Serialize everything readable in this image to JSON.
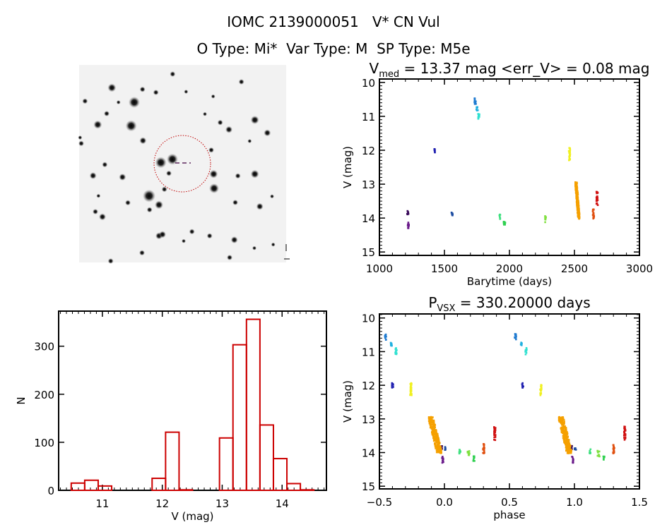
{
  "figure": {
    "title": "IOMC 2139000051   V* CN Vul",
    "subtitle": "O Type: Mi*  Var Type: M  SP Type: M5e"
  },
  "sky_image": {
    "background": "#f2f2f2",
    "circle_color": "#c00000",
    "marker_color": "#400040"
  },
  "chart_data": [
    {
      "id": "light-curve",
      "type": "scatter",
      "title_main": "V",
      "title_sub": "med",
      "title_rest": " = 13.37 mag <err_V> = 0.08 mag",
      "xlabel": "Barytime (days)",
      "ylabel": "V (mag)",
      "xlim": [
        1000,
        3000
      ],
      "ylim": [
        9.9,
        15.1
      ],
      "y_inverted": true,
      "xticks": [
        "1000",
        "1500",
        "2000",
        "2500",
        "3000"
      ],
      "yticks": [
        "10",
        "11",
        "12",
        "13",
        "14",
        "15"
      ],
      "groups": [
        {
          "t": [
            1218,
            1218
          ],
          "v": [
            13.79,
            13.91
          ],
          "color": "#3a0a5a"
        },
        {
          "t": [
            1221,
            1221
          ],
          "v": [
            14.12,
            14.31
          ],
          "color": "#6a1a8a"
        },
        {
          "t": [
            1424,
            1424
          ],
          "v": [
            11.93,
            12.07
          ],
          "color": "#2020b0"
        },
        {
          "t": [
            1558,
            1558
          ],
          "v": [
            13.83,
            13.93
          ],
          "color": "#1a4aa0"
        },
        {
          "t": [
            1736,
            1736
          ],
          "v": [
            10.47,
            10.65
          ],
          "color": "#1e7ad0"
        },
        {
          "t": [
            1751,
            1751
          ],
          "v": [
            10.72,
            10.83
          ],
          "color": "#20b0e0"
        },
        {
          "t": [
            1763,
            1763
          ],
          "v": [
            10.89,
            11.08
          ],
          "color": "#30e0d0"
        },
        {
          "t": [
            1925,
            1925
          ],
          "v": [
            13.89,
            14.03
          ],
          "color": "#40e080"
        },
        {
          "t": [
            1961,
            1961
          ],
          "v": [
            14.1,
            14.25
          ],
          "color": "#30d050"
        },
        {
          "t": [
            2274,
            2280
          ],
          "v": [
            13.94,
            14.12
          ],
          "color": "#80e040"
        },
        {
          "t": [
            2461,
            2461
          ],
          "v": [
            11.93,
            12.31
          ],
          "color": "#f0f020"
        },
        {
          "t": [
            2507,
            2538
          ],
          "v": [
            12.94,
            14.02
          ],
          "color": "#f5a000"
        },
        {
          "t": [
            2646,
            2646
          ],
          "v": [
            13.74,
            14.04
          ],
          "color": "#e05010"
        },
        {
          "t": [
            2674,
            2674
          ],
          "v": [
            13.22,
            13.63
          ],
          "color": "#d01010"
        }
      ]
    },
    {
      "id": "histogram",
      "type": "bar",
      "xlabel": "V (mag)",
      "ylabel": "N",
      "xlim": [
        10.27,
        14.74
      ],
      "ylim": [
        0,
        373
      ],
      "xticks": [
        "11",
        "12",
        "13",
        "14"
      ],
      "yticks": [
        "0",
        "100",
        "200",
        "300"
      ],
      "bin_start": 10.48,
      "bin_width": 0.225,
      "counts": [
        15,
        21,
        9,
        0,
        0,
        0,
        25,
        121,
        1,
        0,
        0,
        109,
        303,
        356,
        136,
        66,
        14,
        1
      ],
      "color": "#cc0000"
    },
    {
      "id": "phased-light-curve",
      "type": "scatter",
      "title_main": "P",
      "title_sub": "VSX",
      "title_rest": " = 330.20000 days",
      "period_days": 330.2,
      "xlabel": "phase",
      "ylabel": "V (mag)",
      "xlim": [
        -0.5,
        1.5
      ],
      "ylim": [
        9.88,
        15.08
      ],
      "y_inverted": true,
      "xticks": [
        "-0.5",
        "0.0",
        "0.5",
        "1.0",
        "1.5"
      ],
      "yticks": [
        "10",
        "11",
        "12",
        "13",
        "14",
        "15"
      ]
    }
  ]
}
